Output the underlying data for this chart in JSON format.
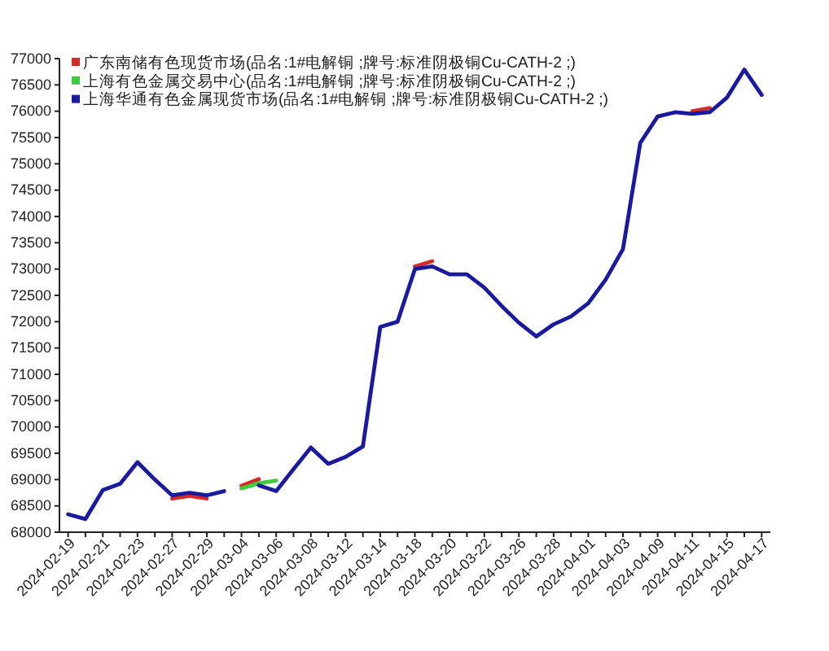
{
  "chart_data": {
    "type": "line",
    "categories": [
      "2024-02-19",
      null,
      "2024-02-21",
      null,
      "2024-02-23",
      null,
      "2024-02-27",
      null,
      "2024-02-29",
      null,
      "2024-03-04",
      null,
      "2024-03-06",
      null,
      "2024-03-08",
      null,
      "2024-03-12",
      null,
      "2024-03-14",
      null,
      "2024-03-18",
      null,
      "2024-03-20",
      null,
      "2024-03-22",
      null,
      "2024-03-26",
      null,
      "2024-03-28",
      null,
      "2024-04-01",
      null,
      "2024-04-03",
      null,
      "2024-04-09",
      null,
      "2024-04-11",
      null,
      "2024-04-15",
      null,
      "2024-04-17"
    ],
    "ylim": [
      68000,
      77000
    ],
    "yticks": [
      68000,
      68500,
      69000,
      69500,
      70000,
      70500,
      71000,
      71500,
      72000,
      72500,
      73000,
      73500,
      74000,
      74500,
      75000,
      75500,
      76000,
      76500,
      77000
    ],
    "legend": "top left",
    "series": [
      {
        "name": "广东南储有色现货市场(品名:1#电解铜 ;牌号:标准阴极铜Cu-CATH-2 ;)",
        "color": "#d42a2a",
        "values": [
          null,
          null,
          null,
          null,
          null,
          null,
          68640,
          68690,
          68640,
          null,
          68880,
          69010,
          null,
          null,
          null,
          null,
          null,
          null,
          null,
          null,
          73050,
          73150,
          null,
          null,
          null,
          null,
          null,
          null,
          null,
          null,
          null,
          null,
          null,
          null,
          null,
          null,
          76000,
          76060,
          null,
          null,
          null
        ]
      },
      {
        "name": "上海有色金属交易中心(品名:1#电解铜 ;牌号:标准阴极铜Cu-CATH-2 ;)",
        "color": "#3ccc3c",
        "values": [
          null,
          null,
          null,
          null,
          null,
          null,
          null,
          null,
          null,
          null,
          68830,
          68930,
          68980,
          null,
          null,
          null,
          null,
          null,
          null,
          null,
          null,
          null,
          null,
          null,
          null,
          null,
          null,
          null,
          null,
          null,
          null,
          null,
          null,
          null,
          null,
          null,
          null,
          null,
          null,
          null,
          null
        ]
      },
      {
        "name": "上海华通有色金属现货市场(品名:1#电解铜 ;牌号:标准阴极铜Cu-CATH-2 ;)",
        "color": "#1a1a9e",
        "values": [
          68340,
          68250,
          68800,
          68920,
          69330,
          69000,
          68700,
          68750,
          68700,
          68780,
          null,
          68890,
          68780,
          69200,
          69610,
          69300,
          69430,
          69630,
          71900,
          72000,
          73000,
          73050,
          72900,
          72900,
          72650,
          72300,
          71980,
          71720,
          71950,
          72100,
          72350,
          72800,
          73380,
          75400,
          75900,
          75980,
          75950,
          75980,
          76260,
          76790,
          76310
        ]
      }
    ]
  }
}
